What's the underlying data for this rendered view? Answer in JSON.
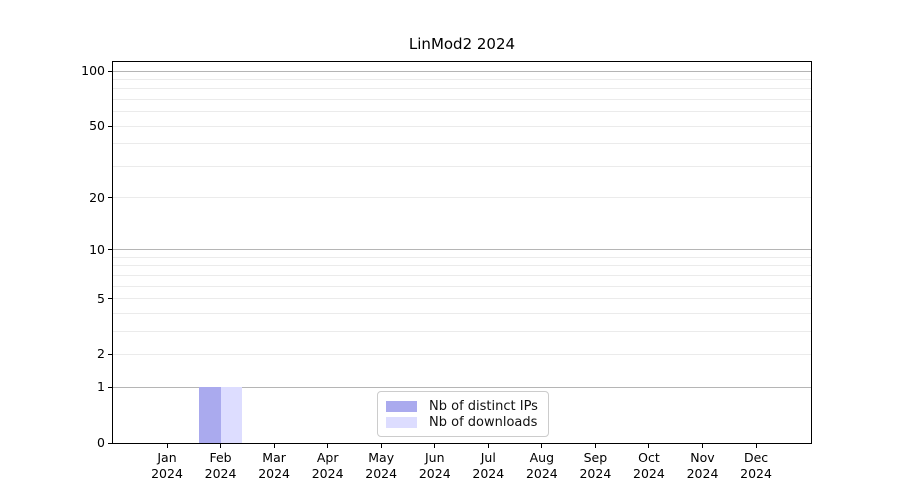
{
  "title": "LinMod2 2024",
  "chart_data": {
    "type": "bar",
    "title": "LinMod2 2024",
    "categories": [
      "Jan 2024",
      "Feb 2024",
      "Mar 2024",
      "Apr 2024",
      "May 2024",
      "Jun 2024",
      "Jul 2024",
      "Aug 2024",
      "Sep 2024",
      "Oct 2024",
      "Nov 2024",
      "Dec 2024"
    ],
    "x_tick_labels": [
      {
        "month": "Jan",
        "year": "2024"
      },
      {
        "month": "Feb",
        "year": "2024"
      },
      {
        "month": "Mar",
        "year": "2024"
      },
      {
        "month": "Apr",
        "year": "2024"
      },
      {
        "month": "May",
        "year": "2024"
      },
      {
        "month": "Jun",
        "year": "2024"
      },
      {
        "month": "Jul",
        "year": "2024"
      },
      {
        "month": "Aug",
        "year": "2024"
      },
      {
        "month": "Sep",
        "year": "2024"
      },
      {
        "month": "Oct",
        "year": "2024"
      },
      {
        "month": "Nov",
        "year": "2024"
      },
      {
        "month": "Dec",
        "year": "2024"
      }
    ],
    "series": [
      {
        "name": "Nb of distinct IPs",
        "color": "#aaaaee",
        "values": [
          0,
          1,
          0,
          0,
          0,
          0,
          0,
          0,
          0,
          0,
          0,
          0
        ]
      },
      {
        "name": "Nb of downloads",
        "color": "#ddddff",
        "values": [
          0,
          1,
          0,
          0,
          0,
          0,
          0,
          0,
          0,
          0,
          0,
          0
        ]
      }
    ],
    "yscale": "log1p",
    "ylim": [
      0,
      100
    ],
    "y_tick_values": [
      0,
      1,
      2,
      5,
      10,
      20,
      50,
      100
    ],
    "major_gridline_values": [
      1,
      10,
      100
    ],
    "minor_gridline_values": [
      2,
      3,
      4,
      5,
      6,
      7,
      8,
      9,
      20,
      30,
      40,
      50,
      60,
      70,
      80,
      90
    ],
    "grid": "horizontal",
    "legend_position": "lower center",
    "colors": {
      "major_grid": "#b5b5b5",
      "minor_grid": "#ebebeb",
      "axis": "#000000",
      "background": "#ffffff"
    }
  }
}
